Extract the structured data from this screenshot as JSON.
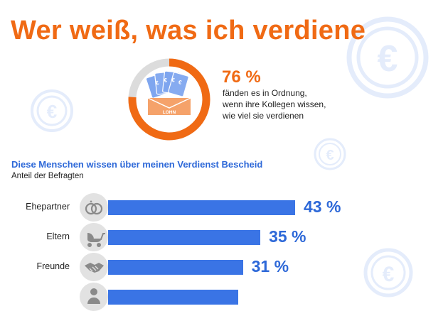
{
  "title": "Wer weiß, was ich verdiene",
  "highlight": {
    "percent": "76 %",
    "percent_value": 76,
    "lines": [
      "fänden es in Ordnung,",
      "wenn ihre Kollegen wissen,",
      "wie viel sie verdienen"
    ],
    "envelope_label": "LOHN"
  },
  "colors": {
    "accent": "#f06a14",
    "bar": "#3a74e5",
    "value_text": "#2d68d8",
    "ring_track": "#dcdcdc",
    "icon_bg": "#e2e2e2"
  },
  "chart_data": {
    "type": "bar",
    "orientation": "horizontal",
    "title": "Diese Menschen wissen über meinen Verdienst Bescheid",
    "subtitle": "Anteil der Befragten",
    "categories": [
      "Ehepartner",
      "Eltern",
      "Freunde",
      ""
    ],
    "values": [
      43,
      35,
      31,
      30
    ],
    "value_labels": [
      "43 %",
      "35 %",
      "31 %",
      ""
    ],
    "icons": [
      "rings-icon",
      "stroller-icon",
      "handshake-icon",
      "person-icon"
    ],
    "unit": "%",
    "grid": false,
    "legend": "none"
  }
}
